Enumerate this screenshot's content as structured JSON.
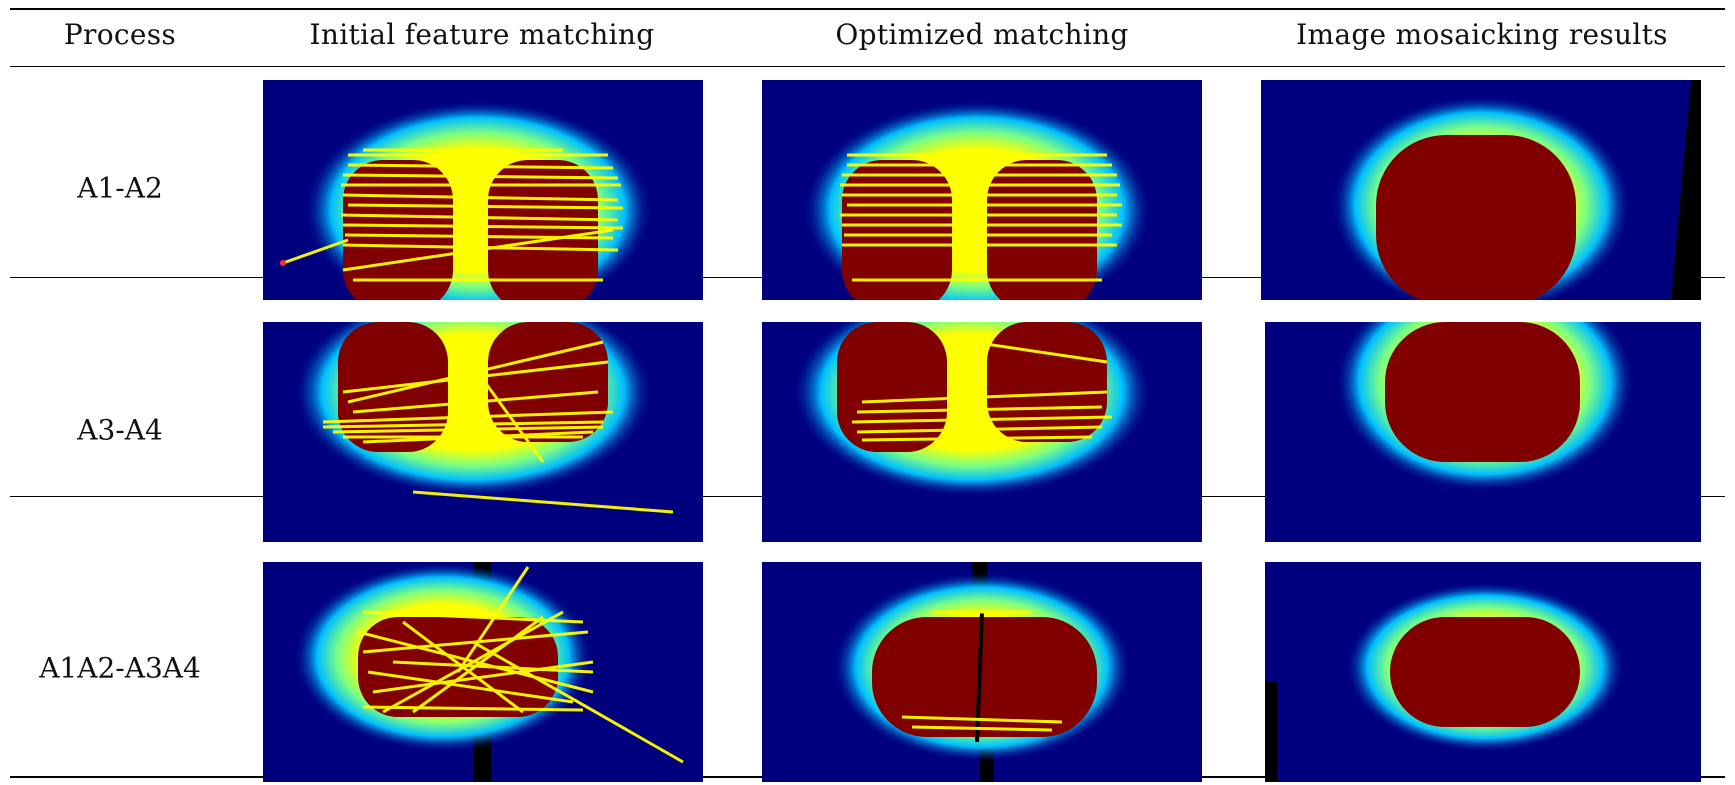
{
  "table": {
    "headers": {
      "process": "Process",
      "initial": "Initial feature matching",
      "optimized": "Optimized matching",
      "mosaic": "Image mosaicking results"
    },
    "rows": [
      {
        "label": "A1-A2"
      },
      {
        "label": "A3-A4"
      },
      {
        "label": "A1A2-A3A4"
      }
    ]
  },
  "colors": {
    "background": "#00007f",
    "hot": "#800000",
    "match_lines": "#ffff00"
  }
}
